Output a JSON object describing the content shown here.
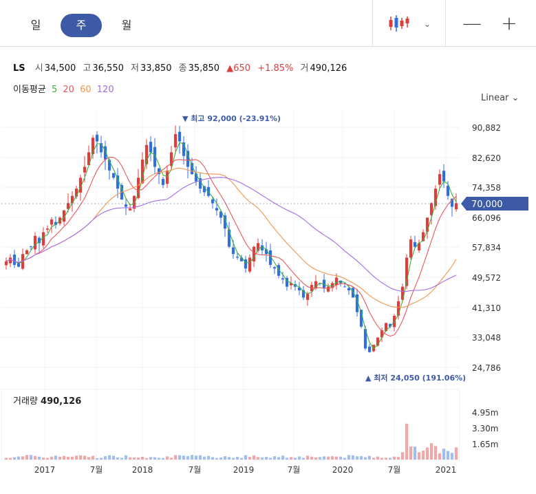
{
  "periods": {
    "day": "일",
    "week": "주",
    "month": "월"
  },
  "zoom": {
    "out": "—",
    "in": "+"
  },
  "stock": {
    "symbol": "LS",
    "open_label": "시",
    "open": "34,500",
    "high_label": "고",
    "high": "36,550",
    "low_label": "저",
    "low": "33,850",
    "close_label": "종",
    "close": "35,850",
    "change": "650",
    "change_pct": "+1.85%",
    "volume_label": "거",
    "volume": "490,126"
  },
  "moving_avg": {
    "label": "이동평균",
    "p5": "5",
    "p20": "20",
    "p60": "60",
    "p120": "120"
  },
  "scale_mode": "Linear",
  "colors": {
    "up": "#e03c3c",
    "down": "#2f6fe0",
    "ma5": "#3cae3c",
    "ma20": "#e8555b",
    "ma60": "#f0974a",
    "ma120": "#a46ae8",
    "accent": "#3d5aa6",
    "badge": "#3d5aa6"
  },
  "chart_data": {
    "type": "candlestick",
    "price_axis": {
      "ticks": [
        "90,882",
        "82,620",
        "74,358",
        "66,096",
        "57,834",
        "49,572",
        "41,310",
        "33,048",
        "24,786"
      ],
      "min": 24786,
      "max": 90882
    },
    "current_price": "70,000",
    "high_marker": "▼ 최고 92,000 (-23.91%)",
    "low_marker": "▲ 최저 24,050 (191.06%)",
    "time_axis": [
      "2017",
      "7월",
      "2018",
      "7월",
      "2019",
      "7월",
      "2020",
      "7월",
      "2021"
    ],
    "volume_axis": [
      "4.95m",
      "3.30m",
      "1.65m"
    ],
    "volume_label": "거래량",
    "volume_value": "490,126",
    "close_series": [
      54000,
      55000,
      53000,
      52500,
      56000,
      57000,
      58000,
      61000,
      59000,
      62000,
      63000,
      65500,
      64000,
      66000,
      68000,
      70000,
      72000,
      74000,
      77000,
      80000,
      84000,
      88000,
      87000,
      84000,
      82000,
      79000,
      77000,
      74000,
      71000,
      69000,
      68500,
      72000,
      77000,
      82000,
      86000,
      84000,
      80000,
      78000,
      75000,
      79000,
      84000,
      89000,
      87000,
      83000,
      80000,
      78000,
      76000,
      74000,
      73000,
      72000,
      70000,
      68000,
      66000,
      63000,
      58000,
      56000,
      55000,
      54000,
      52000,
      55000,
      58000,
      59000,
      57000,
      56000,
      53000,
      52000,
      50000,
      49000,
      47000,
      48000,
      47000,
      46000,
      44000,
      45000,
      47500,
      48500,
      48000,
      46500,
      47000,
      48000,
      49500,
      48000,
      47000,
      46000,
      44000,
      40000,
      36000,
      30000,
      29000,
      31000,
      33000,
      35000,
      37000,
      36000,
      39000,
      43000,
      47000,
      55000,
      60000,
      58000,
      59000,
      62000,
      66000,
      70000,
      74000,
      78000,
      76000,
      72000,
      69000,
      70000
    ]
  }
}
